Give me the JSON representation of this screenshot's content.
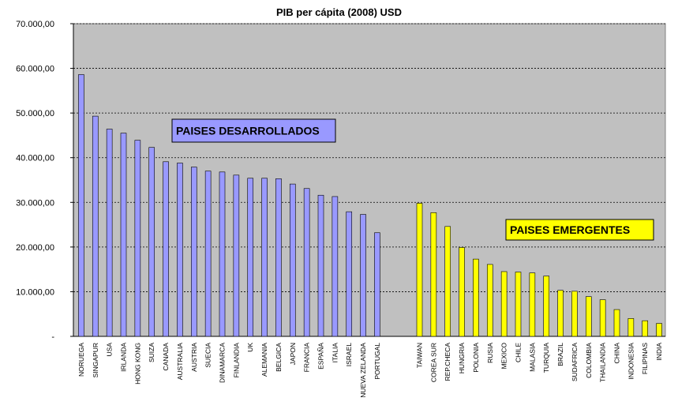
{
  "chart_data": {
    "type": "bar",
    "title": "PIB per cápita (2008) USD",
    "xlabel": "",
    "ylabel": "",
    "ylim": [
      0,
      70000
    ],
    "yticks": [
      0,
      10000,
      20000,
      30000,
      40000,
      50000,
      60000,
      70000
    ],
    "ytick_labels": [
      "-",
      "10.000,00",
      "20.000,00",
      "30.000,00",
      "40.000,00",
      "50.000,00",
      "60.000,00",
      "70.000,00"
    ],
    "grid": "horizontal dashed",
    "plot_background": "#c0c0c0",
    "groups": [
      {
        "label": "PAISES DESARROLLADOS",
        "bar_color": "#9999ff",
        "label_color": "#9999ff",
        "categories": [
          "NORUEGA",
          "SINGAPUR",
          "USA",
          "IRLANDA",
          "HONG KONG",
          "SUIZA",
          "CANADA",
          "AUSTRALIA",
          "AUSTRIA",
          "SUECIA",
          "DINAMARCA",
          "FINLANDIA",
          "UK",
          "ALEMANIA",
          "BELGICA",
          "JAPON",
          "FRANCIA",
          "ESPAÑA",
          "ITALIA",
          "ISRAEL",
          "NUEVA ZELANDA",
          "PORTUGAL"
        ],
        "values": [
          58600,
          49300,
          46400,
          45500,
          43900,
          42300,
          39100,
          38800,
          37900,
          37000,
          36800,
          36100,
          35400,
          35400,
          35300,
          34100,
          33100,
          31600,
          31300,
          27900,
          27300,
          23200
        ]
      },
      {
        "label": "PAISES EMERGENTES",
        "bar_color": "#ffff00",
        "label_color": "#ffff00",
        "categories": [
          "TAIWAN",
          "COREA SUR",
          "REP.CHECA",
          "HUNGRIA",
          "POLONIA",
          "RUSIA",
          "MEXICO",
          "CHILE",
          "MALASIA",
          "TURQUIA",
          "BRAZIL",
          "SUDAFRICA",
          "COLOMBIA",
          "THAILANDIA",
          "CHINA",
          "INDONESIA",
          "FILIPINAS",
          "INDIA"
        ],
        "values": [
          29800,
          27700,
          24600,
          19900,
          17300,
          16100,
          14500,
          14400,
          14200,
          13500,
          10300,
          10100,
          8900,
          8200,
          6000,
          4000,
          3500,
          2900
        ]
      }
    ]
  }
}
